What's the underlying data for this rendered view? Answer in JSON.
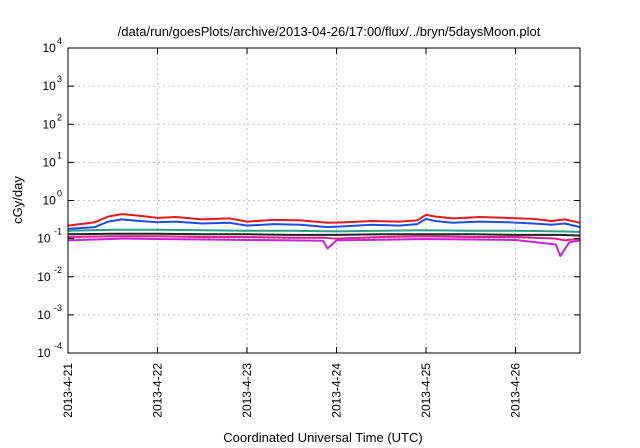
{
  "chart_data": {
    "type": "line",
    "title": "/data/run/goesPlots/archive/2013-04-26/17:00/flux/../bryn/5daysMoon.plot",
    "xlabel": "Coordinated Universal Time (UTC)",
    "ylabel": "cGy/day",
    "y_scale": "log",
    "ylim": [
      0.0001,
      10000
    ],
    "xlim": [
      0,
      5.72
    ],
    "x_origin_label": "2013-4-21",
    "x_ticks": [
      {
        "x": 0,
        "label": "2013-4-21"
      },
      {
        "x": 1,
        "label": "2013-4-22"
      },
      {
        "x": 2,
        "label": "2013-4-23"
      },
      {
        "x": 3,
        "label": "2013-4-24"
      },
      {
        "x": 4,
        "label": "2013-4-25"
      },
      {
        "x": 5,
        "label": "2013-4-26"
      }
    ],
    "y_ticks": [
      {
        "v": 0.0001,
        "base": "10",
        "exp": "-4"
      },
      {
        "v": 0.001,
        "base": "10",
        "exp": "-3"
      },
      {
        "v": 0.01,
        "base": "10",
        "exp": "-2"
      },
      {
        "v": 0.1,
        "base": "10",
        "exp": "-1"
      },
      {
        "v": 1,
        "base": "10",
        "exp": "0"
      },
      {
        "v": 10,
        "base": "10",
        "exp": "1"
      },
      {
        "v": 100,
        "base": "10",
        "exp": "2"
      },
      {
        "v": 1000,
        "base": "10",
        "exp": "3"
      },
      {
        "v": 10000,
        "base": "10",
        "exp": "4"
      }
    ],
    "grid": true,
    "legend": "none",
    "series": [
      {
        "color": "#e41a1c",
        "x": [
          0,
          0.3,
          0.45,
          0.6,
          0.8,
          1.0,
          1.2,
          1.5,
          1.8,
          2.0,
          2.3,
          2.6,
          2.9,
          3.1,
          3.4,
          3.7,
          3.9,
          4.0,
          4.1,
          4.3,
          4.6,
          4.9,
          5.2,
          5.4,
          5.55,
          5.72
        ],
        "values": [
          0.22,
          0.27,
          0.38,
          0.44,
          0.4,
          0.35,
          0.37,
          0.32,
          0.34,
          0.28,
          0.31,
          0.3,
          0.26,
          0.27,
          0.29,
          0.28,
          0.3,
          0.42,
          0.38,
          0.34,
          0.37,
          0.35,
          0.33,
          0.29,
          0.32,
          0.26
        ]
      },
      {
        "color": "#1f4fe0",
        "x": [
          0,
          0.3,
          0.45,
          0.6,
          0.8,
          1.0,
          1.2,
          1.5,
          1.8,
          2.0,
          2.3,
          2.6,
          2.9,
          3.1,
          3.4,
          3.7,
          3.9,
          4.0,
          4.1,
          4.3,
          4.6,
          4.9,
          5.2,
          5.4,
          5.55,
          5.72
        ],
        "values": [
          0.18,
          0.2,
          0.28,
          0.32,
          0.29,
          0.27,
          0.28,
          0.25,
          0.26,
          0.22,
          0.24,
          0.23,
          0.2,
          0.21,
          0.23,
          0.22,
          0.24,
          0.33,
          0.29,
          0.26,
          0.28,
          0.27,
          0.25,
          0.23,
          0.25,
          0.2
        ]
      },
      {
        "color": "#2ca089",
        "x": [
          0,
          0.5,
          1.0,
          1.5,
          2.0,
          2.5,
          3.0,
          3.5,
          4.0,
          4.5,
          5.0,
          5.5,
          5.72
        ],
        "values": [
          0.16,
          0.17,
          0.17,
          0.165,
          0.16,
          0.16,
          0.155,
          0.16,
          0.165,
          0.16,
          0.16,
          0.155,
          0.15
        ]
      },
      {
        "color": "#222222",
        "x": [
          0,
          0.5,
          1.0,
          1.5,
          2.0,
          2.5,
          3.0,
          3.5,
          4.0,
          4.5,
          5.0,
          5.5,
          5.72
        ],
        "values": [
          0.13,
          0.135,
          0.135,
          0.13,
          0.13,
          0.125,
          0.125,
          0.13,
          0.13,
          0.13,
          0.125,
          0.125,
          0.12
        ]
      },
      {
        "color": "#e0218a",
        "x": [
          0,
          0.5,
          1.0,
          1.5,
          2.0,
          2.5,
          2.85,
          3.0,
          3.5,
          4.0,
          4.5,
          5.0,
          5.45,
          5.55,
          5.72
        ],
        "values": [
          0.11,
          0.115,
          0.115,
          0.11,
          0.11,
          0.105,
          0.105,
          0.1,
          0.11,
          0.115,
          0.11,
          0.11,
          0.1,
          0.09,
          0.1
        ]
      },
      {
        "color": "#c724d6",
        "x": [
          0,
          0.3,
          0.6,
          1.0,
          1.5,
          2.0,
          2.5,
          2.85,
          2.9,
          3.0,
          3.5,
          4.0,
          4.5,
          5.0,
          5.45,
          5.5,
          5.6,
          5.72
        ],
        "values": [
          0.09,
          0.095,
          0.1,
          0.098,
          0.095,
          0.092,
          0.09,
          0.088,
          0.055,
          0.09,
          0.093,
          0.098,
          0.095,
          0.092,
          0.07,
          0.035,
          0.08,
          0.09
        ]
      }
    ]
  }
}
